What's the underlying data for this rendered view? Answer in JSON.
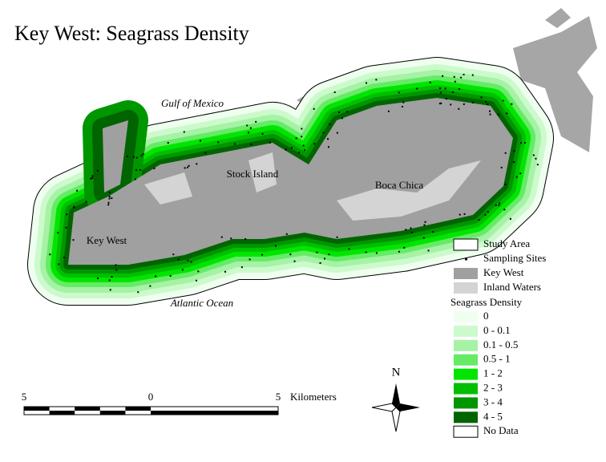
{
  "title": "Key West:  Seagrass Density",
  "place_labels": [
    "Gulf of Mexico",
    "Stock Island",
    "Boca Chica",
    "Key West",
    "Atlantic Ocean"
  ],
  "legend": {
    "layers": [
      {
        "label": "Study Area",
        "color": "#ffffff"
      },
      {
        "label": "Sampling Sites",
        "color": "#000000"
      },
      {
        "label": "Key West",
        "color": "#a0a0a0"
      },
      {
        "label": "Inland Waters",
        "color": "#d4d4d4"
      }
    ],
    "density_title": "Seagrass Density",
    "density": [
      {
        "label": "0",
        "color": "#efffef"
      },
      {
        "label": "0 - 0.1",
        "color": "#ccfacc"
      },
      {
        "label": "0.1 - 0.5",
        "color": "#a6f2a6"
      },
      {
        "label": "0.5 - 1",
        "color": "#66eb66"
      },
      {
        "label": "1 - 2",
        "color": "#00e600"
      },
      {
        "label": "2 - 3",
        "color": "#00bf00"
      },
      {
        "label": "3 - 4",
        "color": "#009600"
      },
      {
        "label": "4 - 5",
        "color": "#006400"
      },
      {
        "label": "No Data",
        "color": "#ffffff"
      }
    ]
  },
  "scale_bar": {
    "labels": [
      "5",
      "0",
      "5"
    ],
    "unit": "Kilometers"
  },
  "north": "N"
}
